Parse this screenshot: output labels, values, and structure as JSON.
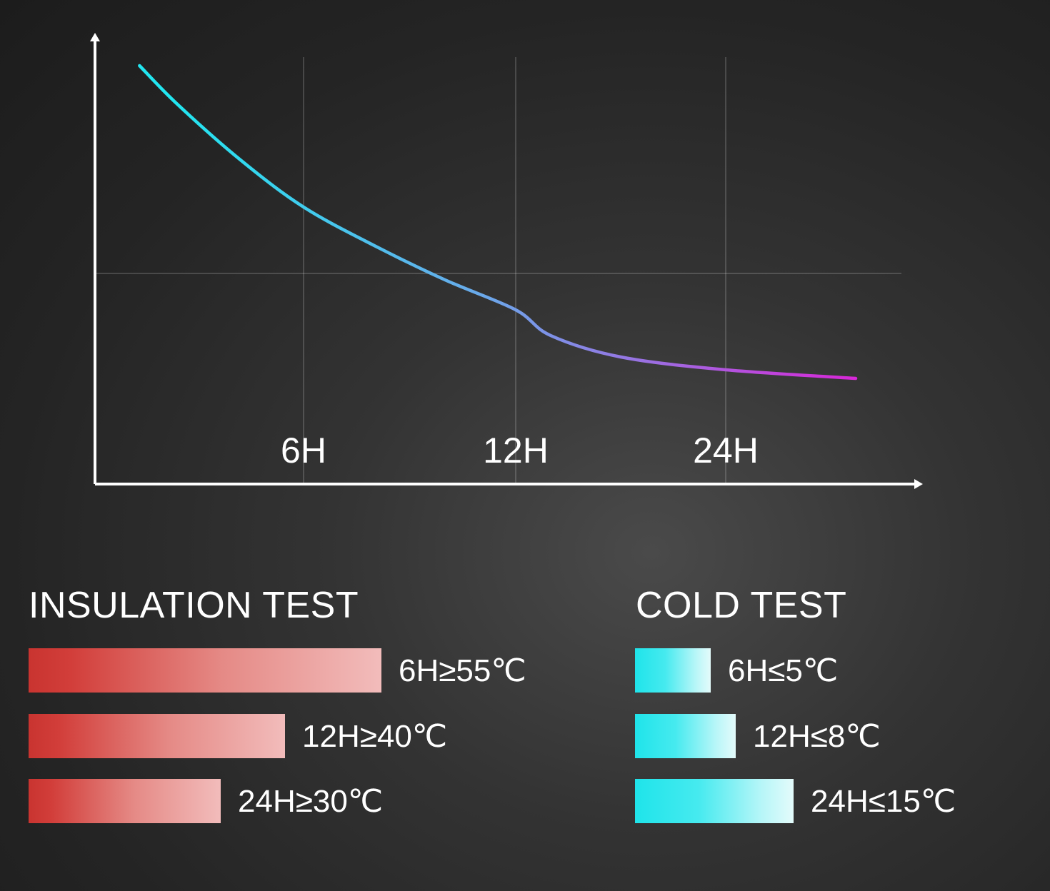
{
  "chart_data": {
    "type": "line",
    "x_ticks": [
      "6H",
      "12H",
      "24H"
    ],
    "series": [
      {
        "points": [
          {
            "x": 0.8,
            "y": 97
          },
          {
            "x": 2,
            "y": 88
          },
          {
            "x": 4,
            "y": 75
          },
          {
            "x": 6,
            "y": 64
          },
          {
            "x": 8,
            "y": 55
          },
          {
            "x": 10,
            "y": 47
          },
          {
            "x": 12,
            "y": 40
          },
          {
            "x": 14,
            "y": 34
          },
          {
            "x": 18,
            "y": 29
          },
          {
            "x": 24,
            "y": 26
          },
          {
            "x": 28,
            "y": 24
          }
        ],
        "color_start": "#22e6f0",
        "color_end": "#d827d8"
      }
    ],
    "axis_color": "#ffffff",
    "grid": true
  },
  "insulation": {
    "title": "INSULATION TEST",
    "color": "#c93430",
    "rows": [
      {
        "label": "6H≥55℃",
        "value": 55
      },
      {
        "label": "12H≥40℃",
        "value": 40
      },
      {
        "label": "24H≥30℃",
        "value": 30
      }
    ]
  },
  "cold": {
    "title": "COLD TEST",
    "color": "#1fe4ea",
    "rows": [
      {
        "label": "6H≤5℃",
        "value": 5
      },
      {
        "label": "12H≤8℃",
        "value": 8
      },
      {
        "label": "24H≤15℃",
        "value": 15
      }
    ]
  }
}
